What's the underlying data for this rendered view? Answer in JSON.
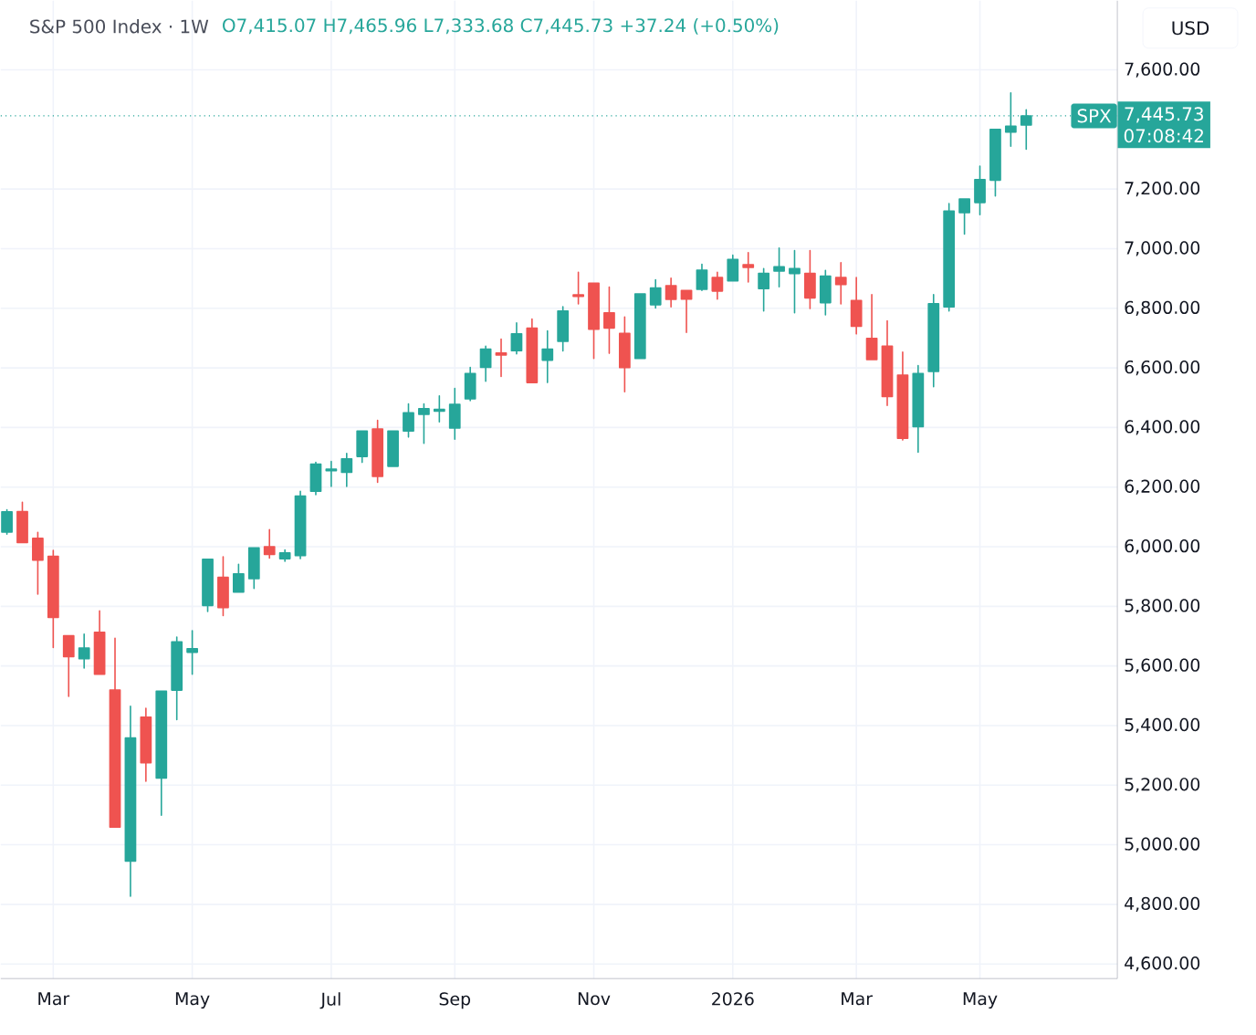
{
  "chart_data": {
    "type": "candlestick",
    "title": "S&P 500 Index · 1W",
    "subtitle": "O7,415.07  H7,465.96  L7,333.68  C7,445.73  +37.24 (+0.50%)",
    "categories": [
      null,
      null,
      null,
      "Mar",
      null,
      null,
      null,
      null,
      null,
      null,
      null,
      null,
      "May",
      null,
      null,
      null,
      null,
      null,
      null,
      null,
      null,
      "Jul",
      null,
      null,
      null,
      null,
      null,
      null,
      null,
      "Sep",
      null,
      null,
      null,
      null,
      null,
      null,
      null,
      null,
      "Nov",
      null,
      null,
      null,
      null,
      null,
      null,
      null,
      null,
      "2026",
      null,
      null,
      null,
      null,
      null,
      null,
      null,
      "Mar",
      null,
      null,
      null,
      null,
      null,
      null,
      null,
      "May",
      null,
      null,
      null
    ],
    "ohlc": [
      [
        6049,
        6124,
        6042,
        6117
      ],
      [
        6118,
        6149,
        6014,
        6014
      ],
      [
        6028,
        6048,
        5841,
        5955
      ],
      [
        5968,
        5988,
        5662,
        5763
      ],
      [
        5701,
        5701,
        5498,
        5631
      ],
      [
        5624,
        5707,
        5593,
        5660
      ],
      [
        5713,
        5785,
        5572,
        5572
      ],
      [
        5519,
        5693,
        5059,
        5059
      ],
      [
        4945,
        5465,
        4827,
        5358
      ],
      [
        5428,
        5458,
        5213,
        5275
      ],
      [
        5224,
        5515,
        5099,
        5515
      ],
      [
        5519,
        5697,
        5420,
        5681
      ],
      [
        5646,
        5718,
        5572,
        5658
      ],
      [
        5803,
        5958,
        5783,
        5958
      ],
      [
        5897,
        5966,
        5769,
        5796
      ],
      [
        5848,
        5941,
        5848,
        5909
      ],
      [
        5893,
        5996,
        5860,
        5996
      ],
      [
        6000,
        6057,
        5962,
        5974
      ],
      [
        5960,
        5989,
        5951,
        5979
      ],
      [
        5970,
        6186,
        5960,
        6170
      ],
      [
        6186,
        6283,
        6175,
        6277
      ],
      [
        6255,
        6286,
        6202,
        6260
      ],
      [
        6250,
        6313,
        6202,
        6295
      ],
      [
        6303,
        6388,
        6283,
        6388
      ],
      [
        6395,
        6424,
        6216,
        6236
      ],
      [
        6270,
        6388,
        6270,
        6388
      ],
      [
        6388,
        6479,
        6368,
        6449
      ],
      [
        6444,
        6479,
        6347,
        6463
      ],
      [
        6455,
        6506,
        6419,
        6461
      ],
      [
        6398,
        6531,
        6361,
        6478
      ],
      [
        6496,
        6602,
        6490,
        6581
      ],
      [
        6602,
        6673,
        6555,
        6663
      ],
      [
        6650,
        6697,
        6571,
        6643
      ],
      [
        6658,
        6751,
        6647,
        6714
      ],
      [
        6733,
        6764,
        6551,
        6551
      ],
      [
        6626,
        6724,
        6551,
        6663
      ],
      [
        6689,
        6805,
        6657,
        6791
      ],
      [
        6845,
        6921,
        6815,
        6840
      ],
      [
        6884,
        6884,
        6632,
        6730
      ],
      [
        6785,
        6871,
        6649,
        6734
      ],
      [
        6716,
        6771,
        6520,
        6601
      ],
      [
        6632,
        6848,
        6632,
        6848
      ],
      [
        6812,
        6896,
        6801,
        6868
      ],
      [
        6876,
        6901,
        6805,
        6830
      ],
      [
        6860,
        6860,
        6719,
        6831
      ],
      [
        6864,
        6948,
        6860,
        6928
      ],
      [
        6903,
        6921,
        6831,
        6858
      ],
      [
        6892,
        6978,
        6892,
        6964
      ],
      [
        6946,
        6987,
        6888,
        6937
      ],
      [
        6866,
        6933,
        6791,
        6917
      ],
      [
        6925,
        7002,
        6872,
        6939
      ],
      [
        6917,
        6994,
        6785,
        6933
      ],
      [
        6917,
        6994,
        6799,
        6835
      ],
      [
        6819,
        6927,
        6778,
        6908
      ],
      [
        6903,
        6953,
        6815,
        6880
      ],
      [
        6826,
        6903,
        6714,
        6740
      ],
      [
        6699,
        6846,
        6628,
        6628
      ],
      [
        6673,
        6758,
        6474,
        6504
      ],
      [
        6576,
        6653,
        6358,
        6364
      ],
      [
        6403,
        6608,
        6317,
        6581
      ],
      [
        6588,
        6846,
        6537,
        6815
      ],
      [
        6805,
        7151,
        6791,
        7126
      ],
      [
        7121,
        7167,
        7049,
        7167
      ],
      [
        7155,
        7277,
        7114,
        7232
      ],
      [
        7230,
        7400,
        7177,
        7400
      ],
      [
        7391,
        7523,
        7344,
        7411
      ],
      [
        7415.07,
        7465.96,
        7333.68,
        7445.73
      ]
    ],
    "ylim": [
      4551,
      7832
    ],
    "yticks": [
      {
        "value": 4600,
        "label": "4,600.00"
      },
      {
        "value": 4800,
        "label": "4,800.00"
      },
      {
        "value": 5000,
        "label": "5,000.00"
      },
      {
        "value": 5200,
        "label": "5,200.00"
      },
      {
        "value": 5400,
        "label": "5,400.00"
      },
      {
        "value": 5600,
        "label": "5,600.00"
      },
      {
        "value": 5800,
        "label": "5,800.00"
      },
      {
        "value": 6000,
        "label": "6,000.00"
      },
      {
        "value": 6200,
        "label": "6,200.00"
      },
      {
        "value": 6400,
        "label": "6,400.00"
      },
      {
        "value": 6600,
        "label": "6,600.00"
      },
      {
        "value": 6800,
        "label": "6,800.00"
      },
      {
        "value": 7000,
        "label": "7,000.00"
      },
      {
        "value": 7200,
        "label": "7,200.00"
      },
      {
        "value": 7600,
        "label": "7,600.00"
      }
    ],
    "grid": true,
    "ref_lines": [
      {
        "axis": "y",
        "value": 7445.73,
        "label": "SPX",
        "color": "#26a69a",
        "line_style": "dotted"
      }
    ],
    "annotations": [
      "7,445.73",
      "07:08:42",
      "USD"
    ]
  }
}
